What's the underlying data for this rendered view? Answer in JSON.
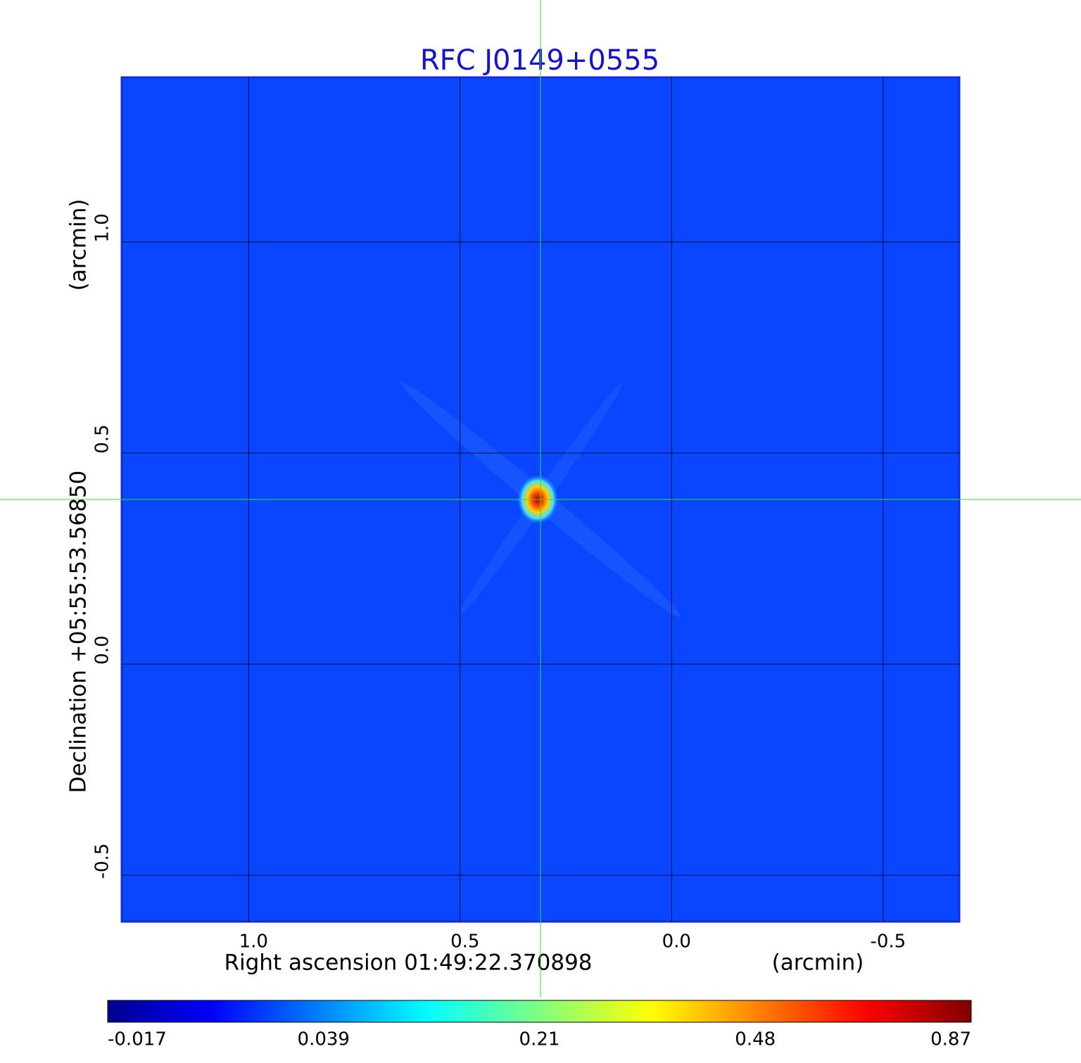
{
  "chart_data": {
    "type": "image",
    "title": "RFC J0149+0555",
    "x_label": "Right ascension  01:49:22.370898",
    "x_unit": "(arcmin)",
    "y_label": "Declination  +05:55:53.56850",
    "y_unit": "(arcmin)",
    "xlim": [
      1.3,
      -0.68
    ],
    "ylim": [
      -0.61,
      1.39
    ],
    "xticks": [
      {
        "value": 1.0,
        "label": "1.0"
      },
      {
        "value": 0.5,
        "label": "0.5"
      },
      {
        "value": 0.0,
        "label": "0.0"
      },
      {
        "value": -0.5,
        "label": "-0.5"
      }
    ],
    "yticks": [
      {
        "value": -0.5,
        "label": "-0.5"
      },
      {
        "value": 0.0,
        "label": "0.0"
      },
      {
        "value": 0.5,
        "label": "0.5"
      },
      {
        "value": 1.0,
        "label": "1.0"
      }
    ],
    "grid": true,
    "crosshair": {
      "x": 0.31,
      "y": 0.39
    },
    "colormap": "jet",
    "colorbar_ticks": [
      -0.017,
      0.039,
      0.21,
      0.48,
      0.87
    ]
  }
}
